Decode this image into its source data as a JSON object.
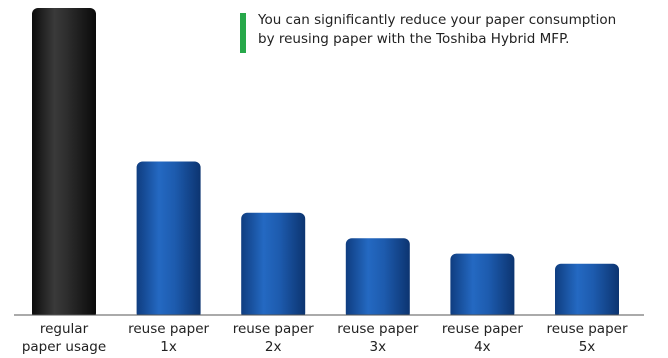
{
  "chart_data": {
    "type": "bar",
    "categories": [
      [
        "regular",
        "paper usage"
      ],
      [
        "reuse paper",
        "1x"
      ],
      [
        "reuse paper",
        "2x"
      ],
      [
        "reuse paper",
        "3x"
      ],
      [
        "reuse paper",
        "4x"
      ],
      [
        "reuse paper",
        "5x"
      ]
    ],
    "values": [
      100,
      50,
      33.3,
      25,
      20,
      16.7
    ],
    "ylim": [
      0,
      100
    ],
    "grid": false,
    "annotation": "You can significantly reduce your paper consumption\nby reusing paper with the Toshiba Hybrid MFP."
  },
  "colors": {
    "first_bar": "#2a2a2a",
    "bars": "#1f5fb4",
    "accent": "#27a84a",
    "axis": "#555555"
  }
}
